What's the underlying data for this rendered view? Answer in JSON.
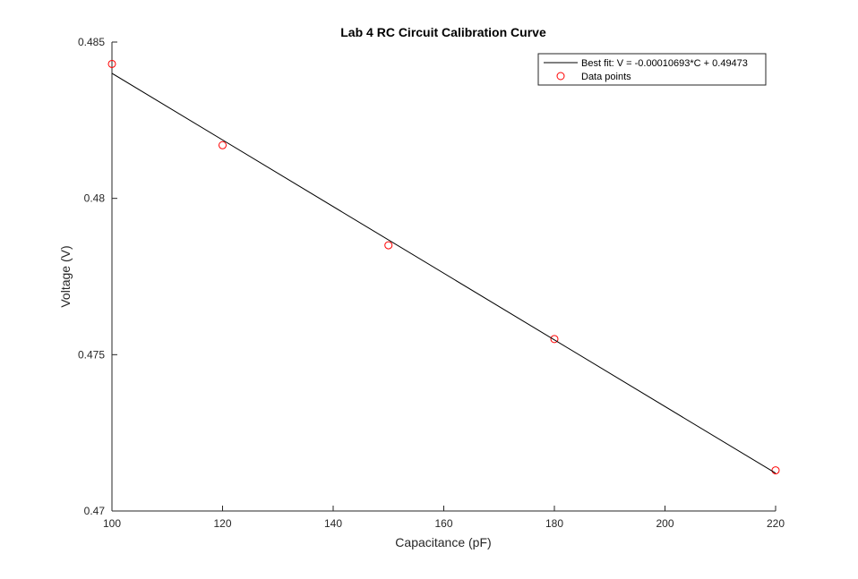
{
  "chart_data": {
    "type": "scatter",
    "title": "Lab 4 RC Circuit Calibration Curve",
    "xlabel": "Capacitance (pF)",
    "ylabel": "Voltage (V)",
    "xlim": [
      100,
      220
    ],
    "ylim": [
      0.47,
      0.485
    ],
    "xticks": [
      100,
      120,
      140,
      160,
      180,
      200,
      220
    ],
    "yticks": [
      0.47,
      0.475,
      0.48,
      0.485
    ],
    "xtick_labels": [
      "100",
      "120",
      "140",
      "160",
      "180",
      "200",
      "220"
    ],
    "ytick_labels": [
      "0.47",
      "0.475",
      "0.48",
      "0.485"
    ],
    "grid": false,
    "legend_position": "top-right",
    "legend": [
      {
        "label": "Best fit: V = -0.00010693*C + 0.49473",
        "style": "line",
        "color": "#000000"
      },
      {
        "label": "Data points",
        "style": "circle",
        "color": "#ff0000"
      }
    ],
    "series": [
      {
        "name": "Data points",
        "type": "scatter",
        "marker": "open-circle",
        "color": "#ff0000",
        "x": [
          100,
          120,
          150,
          180,
          220
        ],
        "y": [
          0.4843,
          0.4817,
          0.4785,
          0.4755,
          0.4713
        ]
      },
      {
        "name": "Best fit: V = -0.00010693*C + 0.49473",
        "type": "line",
        "color": "#000000",
        "slope": -0.00010693,
        "intercept": 0.49473,
        "x": [
          100,
          220
        ],
        "y": [
          0.484,
          0.47121
        ]
      }
    ]
  }
}
